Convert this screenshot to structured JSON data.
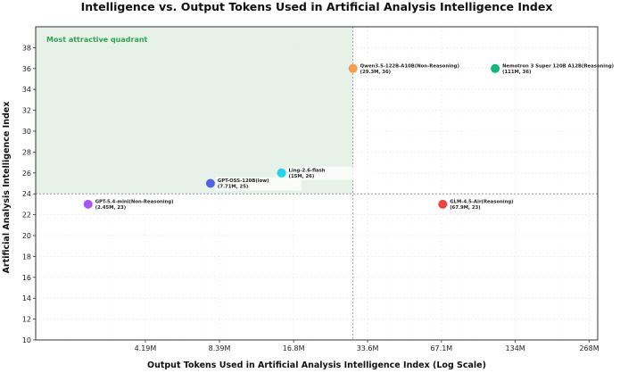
{
  "chart_data": {
    "type": "scatter",
    "title": "Intelligence vs. Output Tokens Used in Artificial Analysis Intelligence Index",
    "xlabel": "Output Tokens Used in Artificial Analysis Intelligence Index (Log Scale)",
    "ylabel": "Artificial Analysis Intelligence Index",
    "xscale": "log",
    "xlim": [
      1.5,
      290
    ],
    "ylim": [
      10,
      40
    ],
    "x_ticks": [
      {
        "value": 4.19,
        "label": "4.19M"
      },
      {
        "value": 8.39,
        "label": "8.39M"
      },
      {
        "value": 16.8,
        "label": "16.8M"
      },
      {
        "value": 33.6,
        "label": "33.6M"
      },
      {
        "value": 67.1,
        "label": "67.1M"
      },
      {
        "value": 134,
        "label": "134M"
      },
      {
        "value": 268,
        "label": "268M"
      }
    ],
    "y_ticks": [
      10,
      12,
      14,
      16,
      18,
      20,
      22,
      24,
      26,
      28,
      30,
      32,
      34,
      36,
      38
    ],
    "grid": true,
    "quadrant": {
      "label": "Most attractive quadrant",
      "x_threshold": 29.3,
      "y_threshold": 24,
      "color": "#e6f2e8"
    },
    "points": [
      {
        "name": "GPT-5.4-mini(Non-Reasoning)",
        "detail": "(2.45M, 23)",
        "x": 2.45,
        "y": 23,
        "color": "#a855f7"
      },
      {
        "name": "GPT-OSS-120B(low)",
        "detail": "(7.71M, 25)",
        "x": 7.71,
        "y": 25,
        "color": "#4f63e8"
      },
      {
        "name": "Ling-2.6-flash",
        "detail": "(15M, 26)",
        "x": 15,
        "y": 26,
        "color": "#22d3ee"
      },
      {
        "name": "Qwen3.5-122B-A10B(Non-Reasoning)",
        "detail": "(29.3M, 36)",
        "x": 29.3,
        "y": 36,
        "color": "#fb9a4b"
      },
      {
        "name": "Nemotron 3 Super 120B A12B(Reasoning)",
        "detail": "(111M, 36)",
        "x": 111,
        "y": 36,
        "color": "#10b981"
      },
      {
        "name": "GLM-4.5-Air(Reasoning)",
        "detail": "(67.9M, 23)",
        "x": 67.9,
        "y": 23,
        "color": "#ef4444"
      }
    ]
  }
}
